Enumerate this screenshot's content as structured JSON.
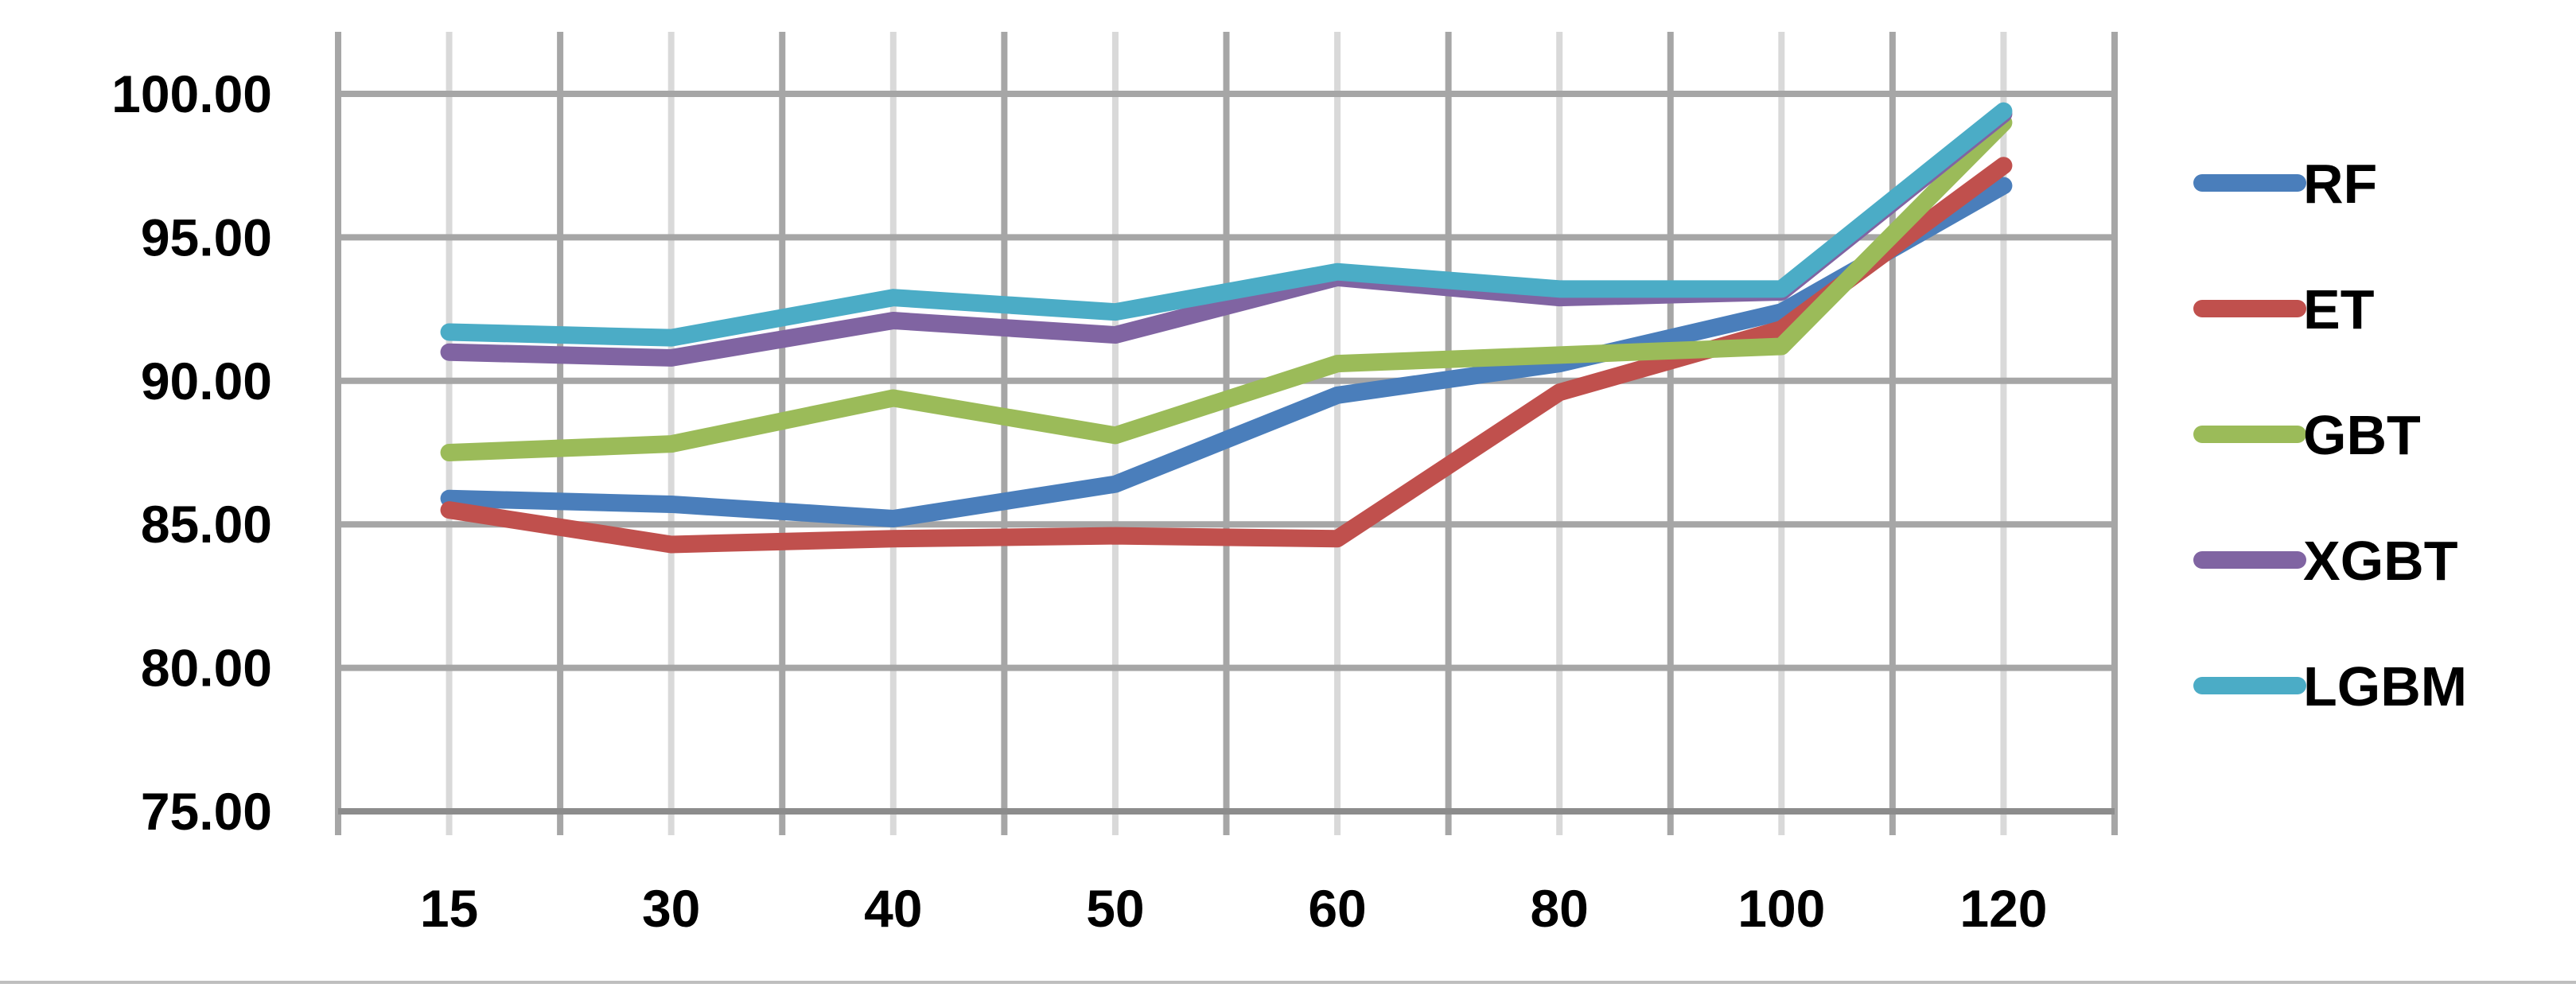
{
  "chart_data": {
    "type": "line",
    "title": "",
    "xlabel": "",
    "ylabel": "",
    "categories": [
      "15",
      "30",
      "40",
      "50",
      "60",
      "80",
      "100",
      "120"
    ],
    "ylim": [
      75,
      100
    ],
    "y_ticks": [
      "75.00",
      "80.00",
      "85.00",
      "90.00",
      "95.00",
      "100.00"
    ],
    "grid": true,
    "legend_position": "right",
    "series": [
      {
        "name": "RF",
        "color": "#4a7ebb",
        "values": [
          85.9,
          85.7,
          85.2,
          86.4,
          89.5,
          90.6,
          92.4,
          96.8
        ]
      },
      {
        "name": "ET",
        "color": "#c0504d",
        "values": [
          85.5,
          84.3,
          84.5,
          84.6,
          84.5,
          89.6,
          91.8,
          97.5
        ]
      },
      {
        "name": "GBT",
        "color": "#9bbb59",
        "values": [
          87.5,
          87.8,
          89.4,
          88.1,
          90.6,
          90.9,
          91.2,
          99.0
        ]
      },
      {
        "name": "XGBT",
        "color": "#8064a2",
        "values": [
          91.0,
          90.8,
          92.1,
          91.6,
          93.6,
          92.9,
          93.1,
          99.3
        ]
      },
      {
        "name": "LGBM",
        "color": "#4bacc6",
        "values": [
          91.7,
          91.5,
          92.9,
          92.4,
          93.8,
          93.2,
          93.2,
          99.4
        ]
      }
    ]
  }
}
